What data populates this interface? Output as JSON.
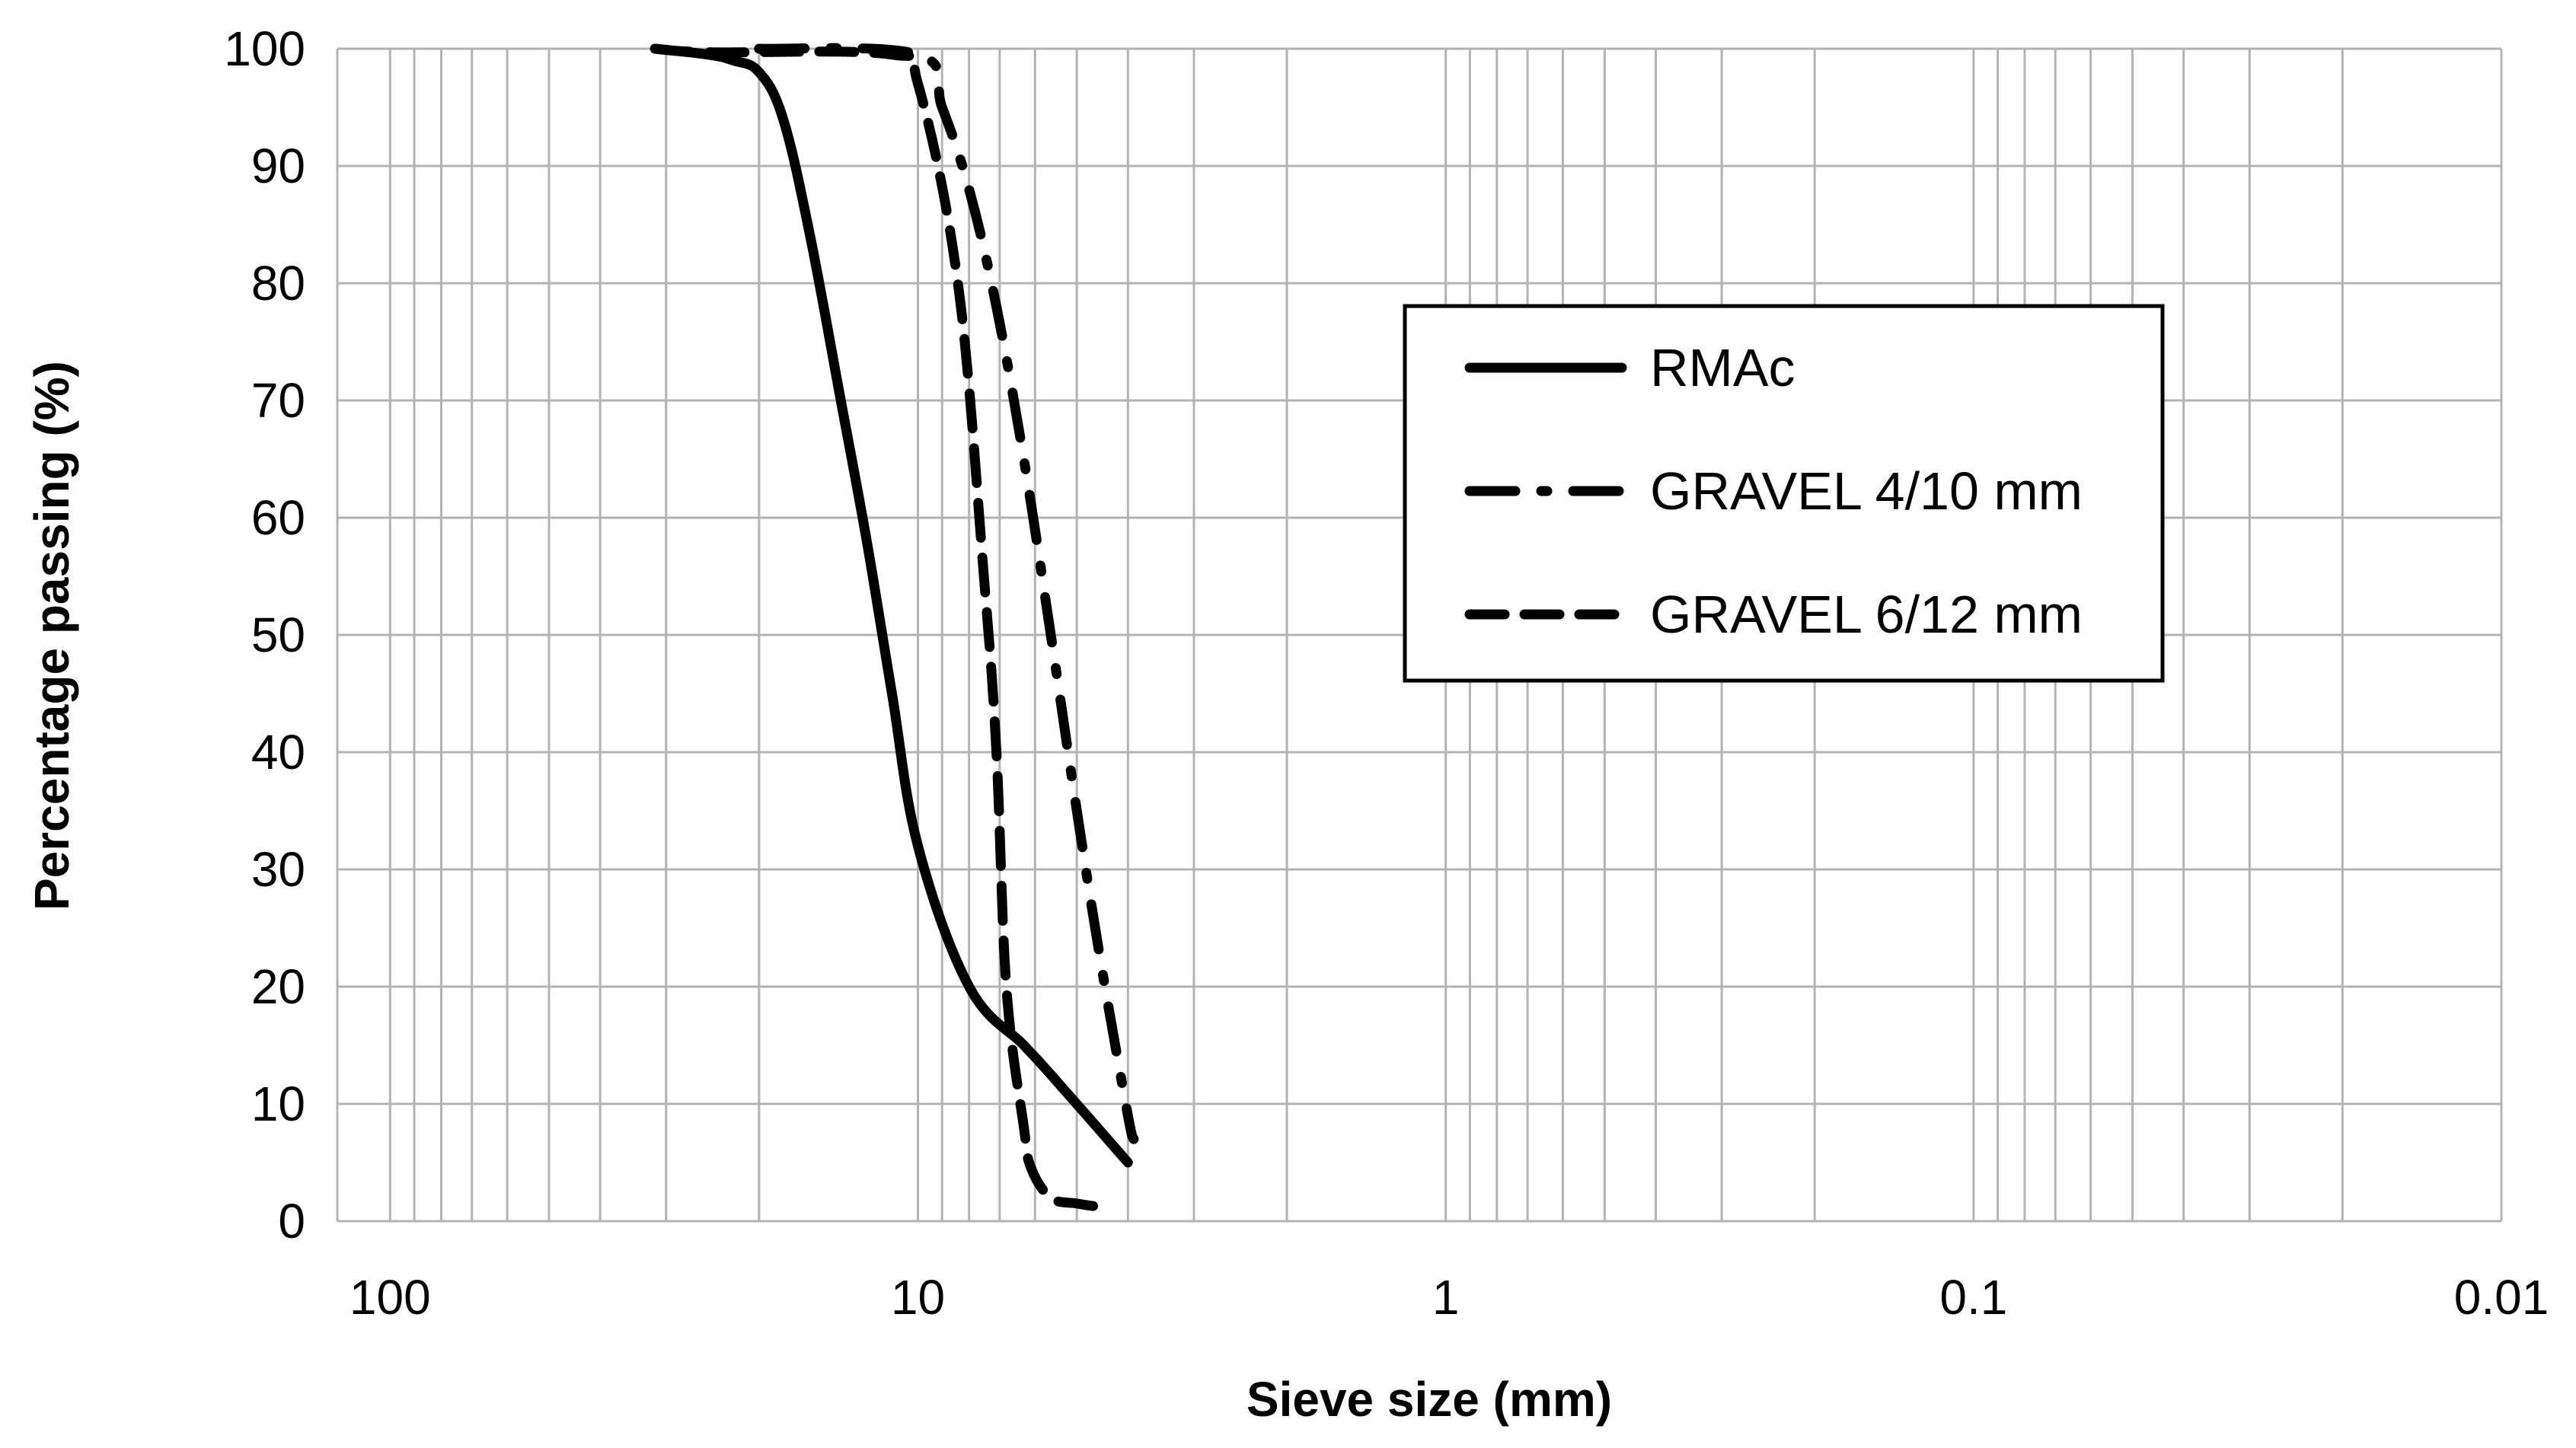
{
  "chart_data": {
    "type": "line",
    "title": "",
    "xlabel": "Sieve size (mm)",
    "ylabel": "Percentage passing (%)",
    "x_scale": "log",
    "x_reversed": true,
    "xlim": [
      100,
      0.01
    ],
    "ylim": [
      0,
      100
    ],
    "x_ticks": [
      100,
      10,
      1,
      0.1,
      0.01
    ],
    "x_tick_labels": [
      "100",
      "10",
      "1",
      "0.1",
      "0.01"
    ],
    "y_ticks": [
      0,
      10,
      20,
      30,
      40,
      50,
      60,
      70,
      80,
      90,
      100
    ],
    "y_tick_labels": [
      "0",
      "10",
      "20",
      "30",
      "40",
      "50",
      "60",
      "70",
      "80",
      "90",
      "100"
    ],
    "grid": true,
    "legend_position": "right",
    "series": [
      {
        "name": "RMAc",
        "style": "solid",
        "points": [
          [
            31.5,
            100
          ],
          [
            25,
            99.5
          ],
          [
            22.4,
            99
          ],
          [
            20,
            98
          ],
          [
            18,
            94
          ],
          [
            16,
            84
          ],
          [
            14,
            70
          ],
          [
            12.5,
            58
          ],
          [
            11.2,
            45
          ],
          [
            10,
            32
          ],
          [
            8,
            20
          ],
          [
            6.3,
            15
          ],
          [
            5.6,
            12.5
          ],
          [
            4,
            5
          ]
        ]
      },
      {
        "name": "GRAVEL 4/10 mm",
        "style": "dash-dot",
        "points": [
          [
            20,
            100
          ],
          [
            10,
            99.5
          ],
          [
            9,
            95
          ],
          [
            8,
            88
          ],
          [
            7.1,
            78
          ],
          [
            6.3,
            65
          ],
          [
            5.6,
            50
          ],
          [
            5,
            35
          ],
          [
            4.5,
            22
          ],
          [
            4,
            9
          ],
          [
            3.9,
            7
          ]
        ]
      },
      {
        "name": "GRAVEL 6/12 mm",
        "style": "dashed",
        "points": [
          [
            31.5,
            100
          ],
          [
            25,
            99.7
          ],
          [
            11.2,
            99.5
          ],
          [
            10,
            97
          ],
          [
            8.4,
            80
          ],
          [
            7.5,
            55
          ],
          [
            7.1,
            40
          ],
          [
            6.8,
            20
          ],
          [
            6.3,
            8
          ],
          [
            6.1,
            4.5
          ],
          [
            5.6,
            2
          ],
          [
            5,
            1.5
          ],
          [
            4.5,
            1.2
          ]
        ]
      }
    ]
  }
}
